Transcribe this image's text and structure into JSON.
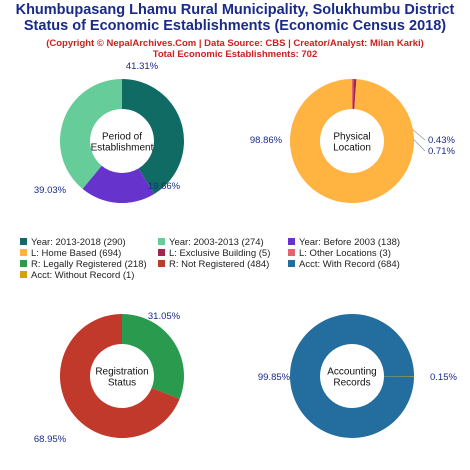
{
  "header": {
    "title_line1": "Khumbupasang Lhamu Rural Municipality, Solukhumbu District",
    "title_line2": "Status of Economic Establishments (Economic Census 2018)",
    "subtitle": "(Copyright © NepalArchives.Com | Data Source: CBS | Creator/Analyst: Milan Karki)",
    "total": "Total Economic Establishments: 702"
  },
  "legend": [
    {
      "label": "Year: 2013-2018 (290)",
      "color": "#0f6b63"
    },
    {
      "label": "Year: 2003-2013 (274)",
      "color": "#66cc99"
    },
    {
      "label": "Year: Before 2003 (138)",
      "color": "#6633cc"
    },
    {
      "label": "L: Home Based (694)",
      "color": "#ffb340"
    },
    {
      "label": "L: Exclusive Building (5)",
      "color": "#a3264d"
    },
    {
      "label": "L: Other Locations (3)",
      "color": "#e0636e"
    },
    {
      "label": "R: Legally Registered (218)",
      "color": "#2a9a4f"
    },
    {
      "label": "R: Not Registered (484)",
      "color": "#c0392b"
    },
    {
      "label": "Acct: With Record (684)",
      "color": "#236e9e"
    },
    {
      "label": "Acct: Without Record (1)",
      "color": "#d4a017"
    }
  ],
  "chart_data": [
    {
      "type": "pie",
      "center_label": [
        "Period of",
        "Establishment"
      ],
      "slices": [
        {
          "name": "Year: 2013-2018",
          "value": 290,
          "percent_label": "41.31%",
          "color": "#0f6b63"
        },
        {
          "name": "Year: Before 2003",
          "value": 138,
          "percent_label": "19.66%",
          "color": "#6633cc"
        },
        {
          "name": "Year: 2003-2013",
          "value": 274,
          "percent_label": "39.03%",
          "color": "#66cc99"
        }
      ]
    },
    {
      "type": "pie",
      "center_label": [
        "Physical",
        "Location"
      ],
      "slices": [
        {
          "name": "L: Other Locations",
          "value": 3,
          "percent_label": "0.43%",
          "color": "#e0636e"
        },
        {
          "name": "L: Exclusive Building",
          "value": 5,
          "percent_label": "0.71%",
          "color": "#a3264d"
        },
        {
          "name": "L: Home Based",
          "value": 694,
          "percent_label": "98.86%",
          "color": "#ffb340"
        }
      ]
    },
    {
      "type": "pie",
      "center_label": [
        "Registration",
        "Status"
      ],
      "slices": [
        {
          "name": "R: Legally Registered",
          "value": 218,
          "percent_label": "31.05%",
          "color": "#2a9a4f"
        },
        {
          "name": "R: Not Registered",
          "value": 484,
          "percent_label": "68.95%",
          "color": "#c0392b"
        }
      ]
    },
    {
      "type": "pie",
      "center_label": [
        "Accounting",
        "Records"
      ],
      "slices": [
        {
          "name": "Acct: Without Record",
          "value": 1,
          "percent_label": "0.15%",
          "color": "#d4a017"
        },
        {
          "name": "Acct: With Record",
          "value": 684,
          "percent_label": "99.85%",
          "color": "#236e9e"
        }
      ]
    }
  ]
}
